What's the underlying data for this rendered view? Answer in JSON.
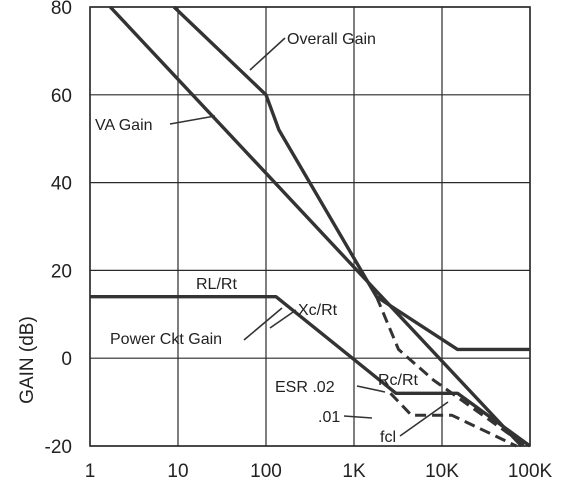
{
  "chart_data": {
    "type": "line",
    "title": "",
    "ylabel": "GAIN (dB)",
    "xlabel": "",
    "x_scale": "log",
    "xlim": [
      1,
      100000
    ],
    "ylim": [
      -20,
      80
    ],
    "grid": true,
    "x_ticks": [
      {
        "value": 1,
        "label": "1"
      },
      {
        "value": 10,
        "label": "10"
      },
      {
        "value": 100,
        "label": "100"
      },
      {
        "value": 1000,
        "label": "1K"
      },
      {
        "value": 10000,
        "label": "10K"
      },
      {
        "value": 100000,
        "label": "100K"
      }
    ],
    "y_ticks": [
      {
        "value": 80,
        "label": "80"
      },
      {
        "value": 60,
        "label": "60"
      },
      {
        "value": 40,
        "label": "40"
      },
      {
        "value": 20,
        "label": "20"
      },
      {
        "value": 0,
        "label": "0"
      },
      {
        "value": -20,
        "label": "-20"
      }
    ],
    "series": [
      {
        "name": "Overall Gain",
        "style": "solid",
        "color": "#333333",
        "x": [
          9,
          100,
          140,
          1800,
          15000,
          100000
        ],
        "y": [
          80,
          60,
          52,
          14,
          2,
          2
        ]
      },
      {
        "name": "VA Gain",
        "style": "solid",
        "color": "#333333",
        "x": [
          1.7,
          80000
        ],
        "y": [
          80,
          -20
        ]
      },
      {
        "name": "Power Ckt Gain",
        "style": "solid",
        "color": "#333333",
        "x": [
          1,
          130,
          3000,
          15000,
          100000
        ],
        "y": [
          14,
          14,
          -8,
          -8,
          -20
        ]
      },
      {
        "name": "ESR .02",
        "style": "dashed",
        "color": "#333333",
        "x": [
          1800,
          3200,
          8000,
          90000
        ],
        "y": [
          14,
          2,
          -5,
          -20
        ]
      },
      {
        "name": ".01",
        "style": "dashed",
        "color": "#333333",
        "x": [
          2600,
          4500,
          13000,
          70000
        ],
        "y": [
          -8,
          -13,
          -13,
          -20
        ]
      }
    ],
    "annotations": [
      {
        "text": "Overall Gain"
      },
      {
        "text": "VA Gain"
      },
      {
        "text": "RL/Rt"
      },
      {
        "text": "Xc/Rt"
      },
      {
        "text": "Power Ckt Gain"
      },
      {
        "text": "ESR .02"
      },
      {
        "text": "Rc/Rt"
      },
      {
        "text": ".01"
      },
      {
        "text": "fcl"
      }
    ]
  }
}
